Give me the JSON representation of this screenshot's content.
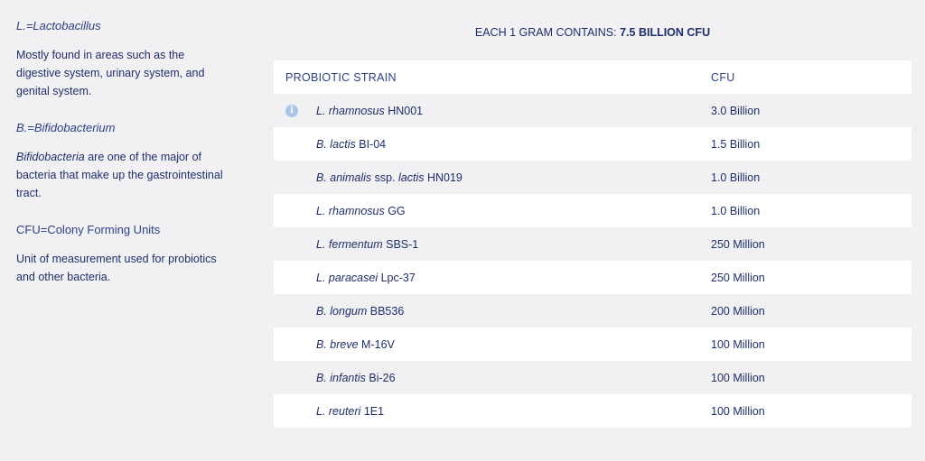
{
  "glossary": [
    {
      "term": "L.=Lactobacillus",
      "term_italic": true,
      "description_italic_prefix": "",
      "description": "Mostly found in areas such as the digestive system, urinary system, and genital system."
    },
    {
      "term": "B.=Bifidobacterium",
      "term_italic": true,
      "description_italic_prefix": "Bifidobacteria",
      "description": " are one of the major of bacteria that make up the gastrointestinal tract."
    },
    {
      "term": "CFU=Colony Forming Units",
      "term_italic": false,
      "description_italic_prefix": "",
      "description": "Unit of measurement used for probiotics and other bacteria."
    }
  ],
  "summary": {
    "prefix": "EACH 1 GRAM CONTAINS: ",
    "value": "7.5 BILLION CFU"
  },
  "table": {
    "headers": {
      "strain": "PROBIOTIC STRAIN",
      "cfu": "CFU"
    },
    "rows": [
      {
        "species": "L. rhamnosus",
        "code": " HN001",
        "cfu": "3.0 Billion",
        "has_info": true
      },
      {
        "species": "B. lactis",
        "code": " BI-04",
        "cfu": "1.5 Billion",
        "has_info": false
      },
      {
        "species": "B. animalis",
        "code": " ssp. ",
        "species2": "lactis",
        "code2": " HN019",
        "cfu": "1.0 Billion",
        "has_info": false
      },
      {
        "species": "L. rhamnosus",
        "code": " GG",
        "cfu": "1.0 Billion",
        "has_info": false
      },
      {
        "species": "L. fermentum",
        "code": " SBS-1",
        "cfu": "250 Million",
        "has_info": false
      },
      {
        "species": "L. paracasei",
        "code": " Lpc-37",
        "cfu": "250 Million",
        "has_info": false
      },
      {
        "species": "B. longum",
        "code": " BB536",
        "cfu": "200 Million",
        "has_info": false
      },
      {
        "species": "B. breve",
        "code": " M-16V",
        "cfu": "100 Million",
        "has_info": false
      },
      {
        "species": "B. infantis",
        "code": " Bi-26",
        "cfu": "100 Million",
        "has_info": false
      },
      {
        "species": "L. reuteri",
        "code": " 1E1",
        "cfu": "100 Million",
        "has_info": false
      }
    ]
  },
  "icons": {
    "info": "info-icon",
    "info_glyph": "i"
  },
  "colors": {
    "text": "#1f2f6b",
    "background": "#f1f0f3",
    "row_highlight": "#ffffff",
    "info_icon": "#a9c6e9"
  }
}
